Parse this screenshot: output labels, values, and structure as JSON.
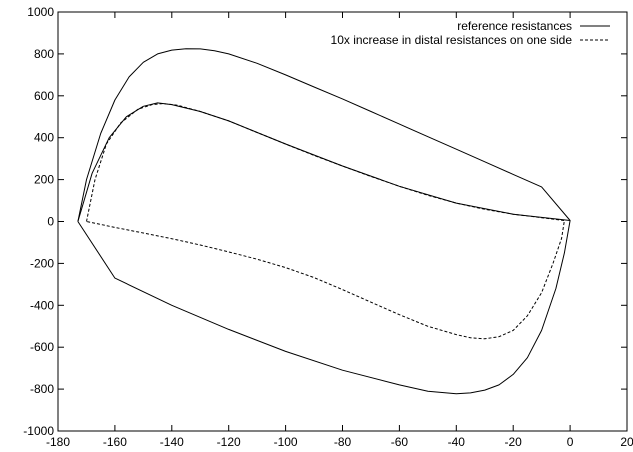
{
  "chart_data": {
    "type": "line",
    "title": "",
    "xlabel": "",
    "ylabel": "",
    "xlim": [
      -180,
      20
    ],
    "ylim": [
      -1000,
      1000
    ],
    "xticks": [
      -180,
      -160,
      -140,
      -120,
      -100,
      -80,
      -60,
      -40,
      -20,
      0,
      20
    ],
    "yticks": [
      -1000,
      -800,
      -600,
      -400,
      -200,
      0,
      200,
      400,
      600,
      800,
      1000
    ],
    "grid": false,
    "legend_position": "top-right",
    "series": [
      {
        "name": "reference resistances",
        "line_style": "solid",
        "color": "#000000",
        "points": [
          [
            -173,
            0
          ],
          [
            -170,
            200
          ],
          [
            -165,
            420
          ],
          [
            -160,
            580
          ],
          [
            -155,
            690
          ],
          [
            -150,
            760
          ],
          [
            -145,
            800
          ],
          [
            -140,
            818
          ],
          [
            -135,
            825
          ],
          [
            -130,
            824
          ],
          [
            -125,
            815
          ],
          [
            -120,
            800
          ],
          [
            -110,
            755
          ],
          [
            -100,
            700
          ],
          [
            -90,
            642
          ],
          [
            -80,
            585
          ],
          [
            -70,
            525
          ],
          [
            -60,
            465
          ],
          [
            -50,
            405
          ],
          [
            -40,
            345
          ],
          [
            -30,
            285
          ],
          [
            -20,
            225
          ],
          [
            -10,
            165
          ],
          [
            0,
            5
          ],
          [
            -2,
            -150
          ],
          [
            -5,
            -320
          ],
          [
            -10,
            -520
          ],
          [
            -15,
            -650
          ],
          [
            -20,
            -730
          ],
          [
            -25,
            -780
          ],
          [
            -30,
            -805
          ],
          [
            -35,
            -818
          ],
          [
            -40,
            -822
          ],
          [
            -50,
            -810
          ],
          [
            -60,
            -780
          ],
          [
            -80,
            -710
          ],
          [
            -100,
            -620
          ],
          [
            -120,
            -515
          ],
          [
            -140,
            -400
          ],
          [
            -160,
            -270
          ],
          [
            -173,
            0
          ]
        ]
      },
      {
        "name": "10x increase in distal resistances on one side",
        "line_style": "dashed",
        "color": "#000000",
        "points": [
          [
            -170,
            0
          ],
          [
            -167,
            200
          ],
          [
            -163,
            370
          ],
          [
            -158,
            470
          ],
          [
            -152,
            535
          ],
          [
            -147,
            558
          ],
          [
            -143,
            563
          ],
          [
            -138,
            555
          ],
          [
            -130,
            525
          ],
          [
            -120,
            480
          ],
          [
            -110,
            425
          ],
          [
            -100,
            370
          ],
          [
            -90,
            315
          ],
          [
            -80,
            265
          ],
          [
            -70,
            215
          ],
          [
            -60,
            168
          ],
          [
            -50,
            125
          ],
          [
            -40,
            88
          ],
          [
            -30,
            58
          ],
          [
            -20,
            35
          ],
          [
            -10,
            18
          ],
          [
            -2,
            5
          ],
          [
            -3,
            -80
          ],
          [
            -6,
            -200
          ],
          [
            -10,
            -340
          ],
          [
            -15,
            -450
          ],
          [
            -20,
            -520
          ],
          [
            -25,
            -550
          ],
          [
            -30,
            -560
          ],
          [
            -35,
            -555
          ],
          [
            -40,
            -540
          ],
          [
            -50,
            -500
          ],
          [
            -60,
            -445
          ],
          [
            -70,
            -385
          ],
          [
            -80,
            -325
          ],
          [
            -90,
            -268
          ],
          [
            -100,
            -220
          ],
          [
            -110,
            -180
          ],
          [
            -120,
            -145
          ],
          [
            -130,
            -112
          ],
          [
            -140,
            -82
          ],
          [
            -150,
            -55
          ],
          [
            -160,
            -28
          ],
          [
            -170,
            0
          ]
        ]
      },
      {
        "name": "",
        "line_style": "solid",
        "color": "#000000",
        "points": [
          [
            -173,
            0
          ],
          [
            -168,
            230
          ],
          [
            -162,
            400
          ],
          [
            -156,
            500
          ],
          [
            -150,
            550
          ],
          [
            -145,
            566
          ],
          [
            -140,
            558
          ],
          [
            -130,
            525
          ],
          [
            -120,
            480
          ],
          [
            -100,
            370
          ],
          [
            -80,
            265
          ],
          [
            -60,
            168
          ],
          [
            -40,
            88
          ],
          [
            -20,
            35
          ],
          [
            0,
            5
          ]
        ]
      }
    ]
  }
}
